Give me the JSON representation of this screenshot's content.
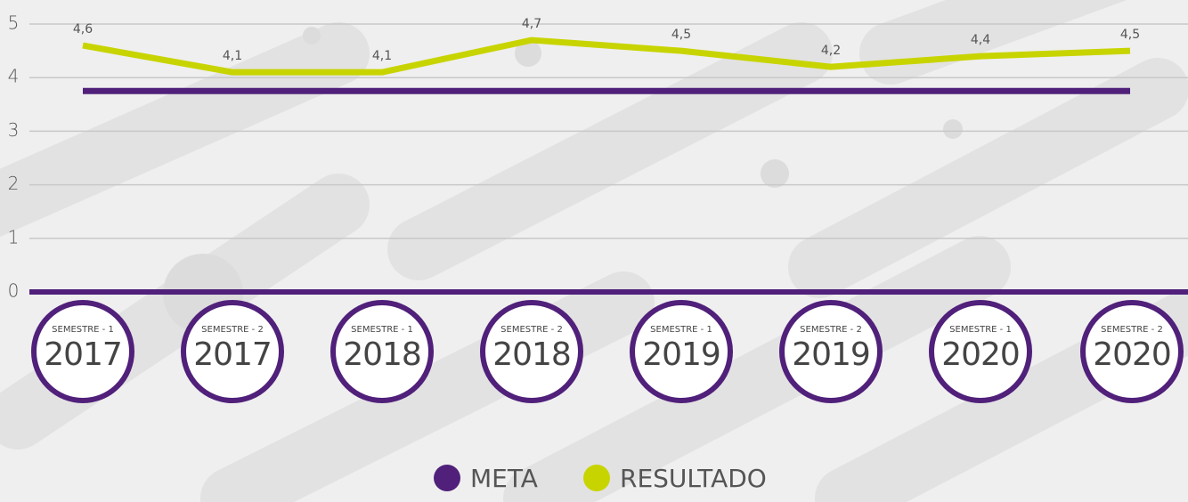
{
  "chart_data": {
    "type": "line",
    "categories": [
      "2017",
      "2017",
      "2018",
      "2018",
      "2019",
      "2019",
      "2020",
      "2020"
    ],
    "category_subtitles": [
      "SEMESTRE - 1",
      "SEMESTRE - 2",
      "SEMESTRE - 1",
      "SEMESTRE - 2",
      "SEMESTRE - 1",
      "SEMESTRE - 2",
      "SEMESTRE - 1",
      "SEMESTRE - 2"
    ],
    "series": [
      {
        "name": "META",
        "color": "#50207a",
        "values": [
          3.75,
          3.75,
          3.75,
          3.75,
          3.75,
          3.75,
          3.75,
          3.75
        ]
      },
      {
        "name": "RESULTADO",
        "color": "#c8d400",
        "values": [
          4.6,
          4.1,
          4.1,
          4.7,
          4.5,
          4.2,
          4.4,
          4.5
        ],
        "value_labels": [
          "4,6",
          "4,1",
          "4,1",
          "4,7",
          "4,5",
          "4,2",
          "4,4",
          "4,5"
        ]
      }
    ],
    "ylim": [
      0,
      5
    ],
    "yticks": [
      0,
      1,
      2,
      3,
      4,
      5
    ],
    "grid": true
  }
}
